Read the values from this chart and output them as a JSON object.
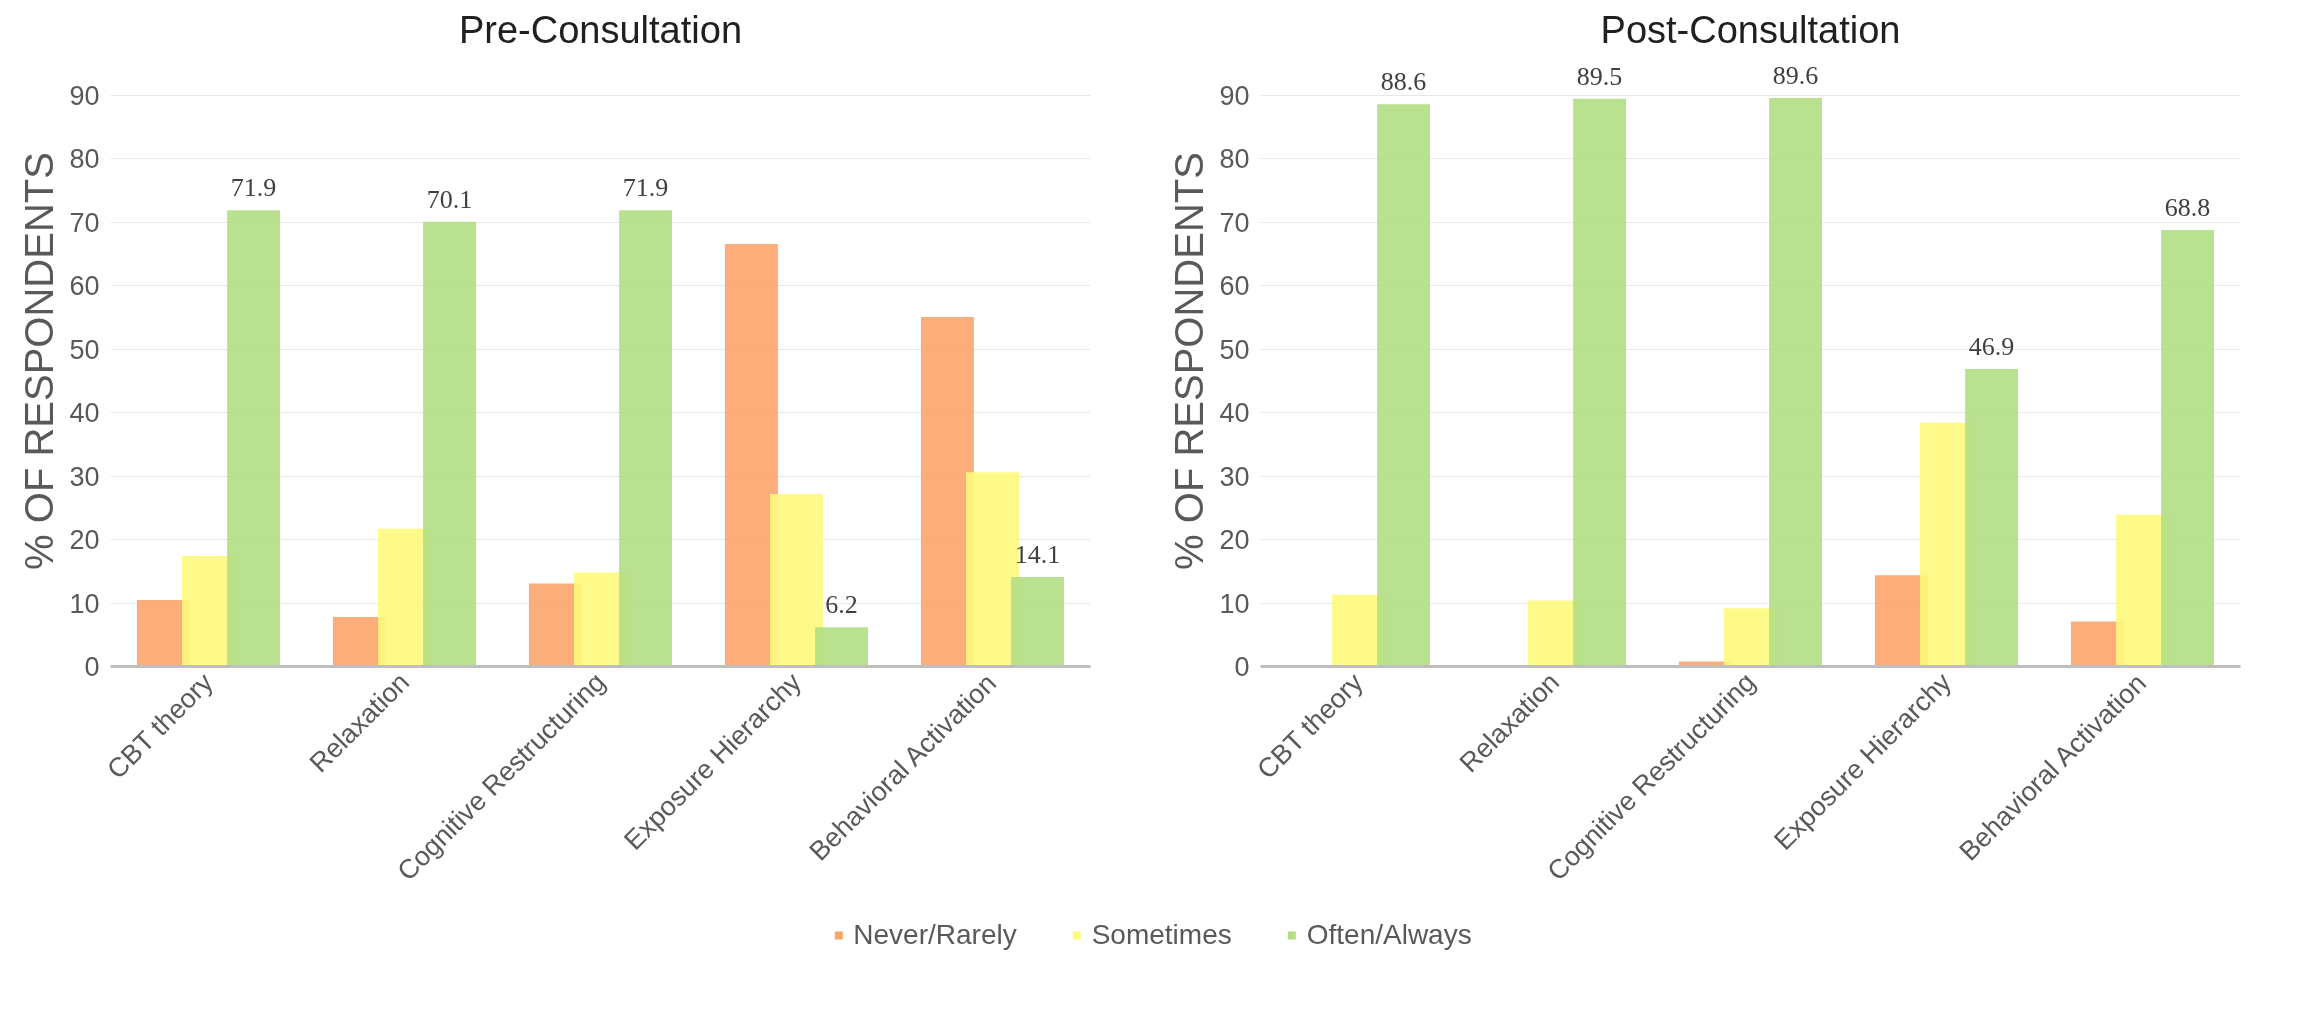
{
  "chart_data": [
    {
      "type": "bar",
      "title": "Pre-Consultation",
      "ylabel": "% OF RESPONDENTS",
      "categories": [
        "CBT theory",
        "Relaxation",
        "Cognitive Restructuring",
        "Exposure Hierarchy",
        "Behavioral Activation"
      ],
      "ylim": [
        0,
        90
      ],
      "yticks": [
        0,
        10,
        20,
        30,
        40,
        50,
        60,
        70,
        80,
        90
      ],
      "grid": "y",
      "legend": "bottom",
      "series": [
        {
          "name": "Never/Rarely",
          "color": "#fca46a",
          "values": [
            10.5,
            7.8,
            13.1,
            66.6,
            55.1
          ]
        },
        {
          "name": "Sometimes",
          "color": "#fef97c",
          "values": [
            17.4,
            21.7,
            14.8,
            27.2,
            30.6
          ]
        },
        {
          "name": "Often/Always",
          "color": "#b3de83",
          "values": [
            71.9,
            70.1,
            71.9,
            6.2,
            14.1
          ],
          "value_labels": [
            "71.9",
            "70.1",
            "71.9",
            "6.2",
            "14.1"
          ]
        }
      ]
    },
    {
      "type": "bar",
      "title": "Post-Consultation",
      "ylabel": "% OF RESPONDENTS",
      "categories": [
        "CBT theory",
        "Relaxation",
        "Cognitive Restructuring",
        "Exposure Hierarchy",
        "Behavioral Activation"
      ],
      "ylim": [
        0,
        90
      ],
      "yticks": [
        0,
        10,
        20,
        30,
        40,
        50,
        60,
        70,
        80,
        90
      ],
      "grid": "y",
      "legend": "bottom",
      "series": [
        {
          "name": "Never/Rarely",
          "color": "#fca46a",
          "values": [
            0,
            0,
            0.8,
            14.4,
            7.1
          ]
        },
        {
          "name": "Sometimes",
          "color": "#fef97c",
          "values": [
            11.3,
            10.4,
            9.2,
            38.4,
            23.9
          ]
        },
        {
          "name": "Often/Always",
          "color": "#b3de83",
          "values": [
            88.6,
            89.5,
            89.6,
            46.9,
            68.8
          ],
          "value_labels": [
            "88.6",
            "89.5",
            "89.6",
            "46.9",
            "68.8"
          ]
        }
      ]
    }
  ]
}
